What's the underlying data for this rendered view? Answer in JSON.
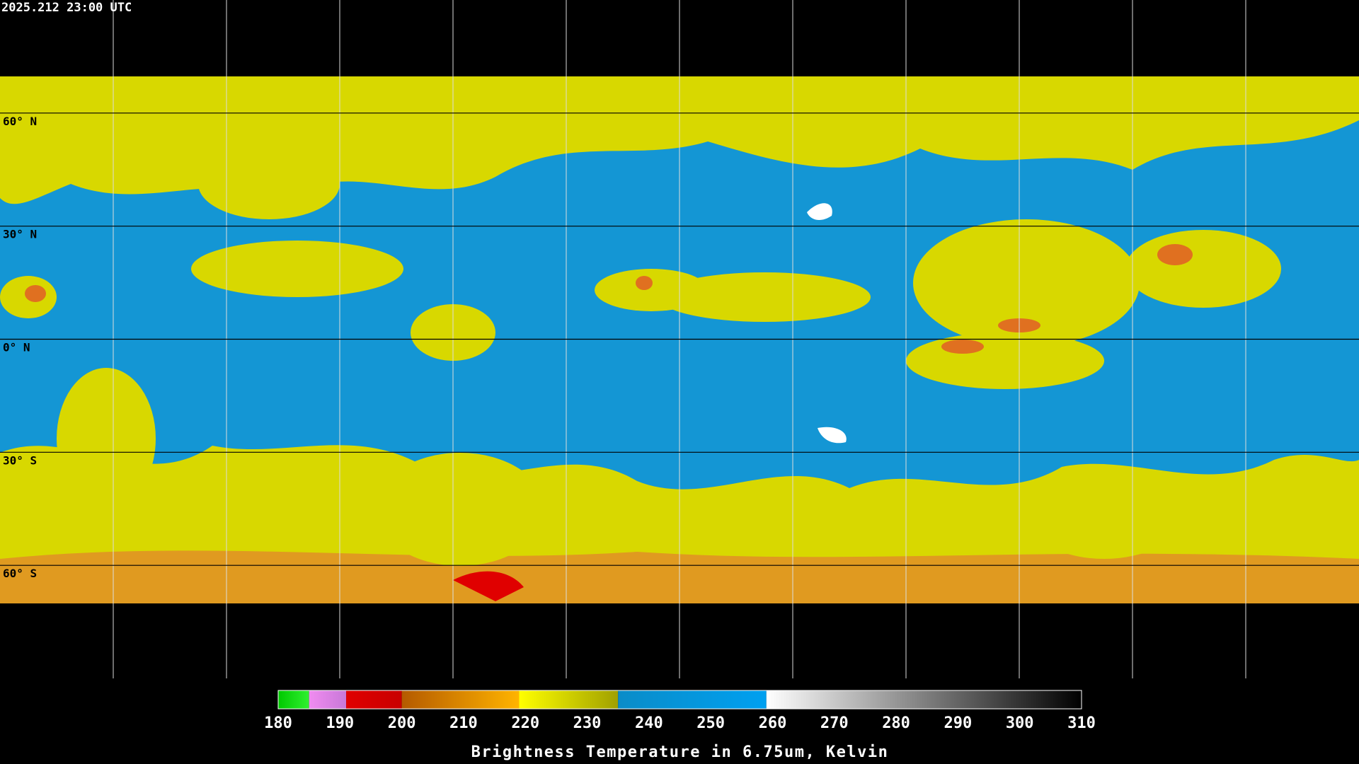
{
  "timestamp": "2025.212 23:00 UTC",
  "map": {
    "lat_labels": [
      {
        "value": 60,
        "label": "60° N"
      },
      {
        "value": 30,
        "label": "30° N"
      },
      {
        "value": 0,
        "label": "0° N"
      },
      {
        "value": -30,
        "label": "30° S"
      },
      {
        "value": -60,
        "label": "60° S"
      }
    ]
  },
  "colorbar": {
    "title": "Brightness Temperature in 6.75um, Kelvin",
    "range": [
      180,
      310
    ],
    "ticks": [
      180,
      190,
      200,
      210,
      220,
      230,
      240,
      250,
      260,
      270,
      280,
      290,
      300,
      310
    ],
    "segments": [
      {
        "from": 180,
        "to": 185,
        "colors": [
          "#00c800",
          "#30f030"
        ]
      },
      {
        "from": 185,
        "to": 191,
        "colors": [
          "#f08cf0",
          "#c878d8"
        ]
      },
      {
        "from": 191,
        "to": 200,
        "colors": [
          "#e00000",
          "#c80000"
        ]
      },
      {
        "from": 200,
        "to": 219,
        "colors": [
          "#b45a00",
          "#ffb400"
        ]
      },
      {
        "from": 219,
        "to": 235,
        "colors": [
          "#ffff00",
          "#a0a000"
        ]
      },
      {
        "from": 235,
        "to": 259,
        "colors": [
          "#0a8cc8",
          "#00a0f0"
        ]
      },
      {
        "from": 259,
        "to": 310,
        "colors": [
          "#ffffff",
          "#000000"
        ]
      }
    ]
  }
}
